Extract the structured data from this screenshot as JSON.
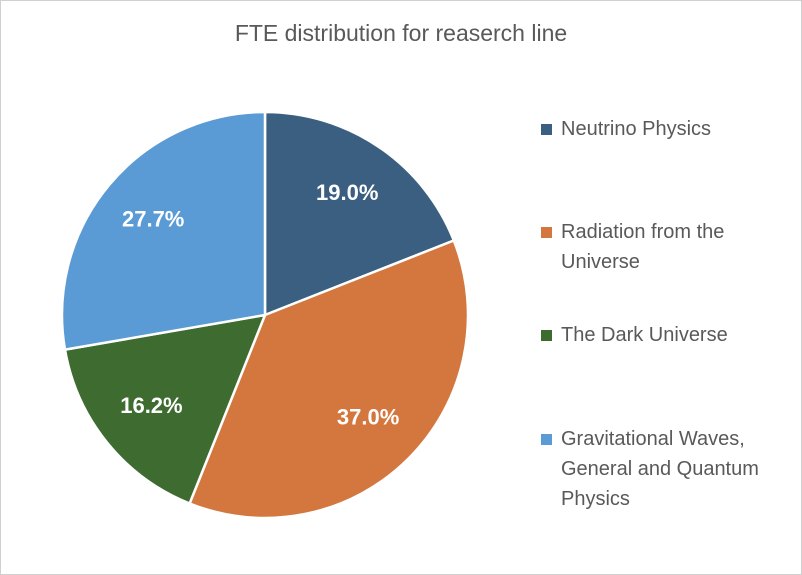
{
  "chart_data": {
    "type": "pie",
    "title": "FTE distribution for reaserch line",
    "categories": [
      "Neutrino Physics",
      "Radiation from the Universe",
      "The Dark Universe",
      "Gravitational Waves, General and Quantum Physics"
    ],
    "values": [
      19.0,
      37.0,
      16.2,
      27.7
    ],
    "value_labels": [
      "19.0%",
      "37.0%",
      "16.2%",
      "27.7%"
    ],
    "colors": [
      "#3a5f80",
      "#d4773f",
      "#3d6b30",
      "#5b9bd5"
    ],
    "legend": "right"
  }
}
